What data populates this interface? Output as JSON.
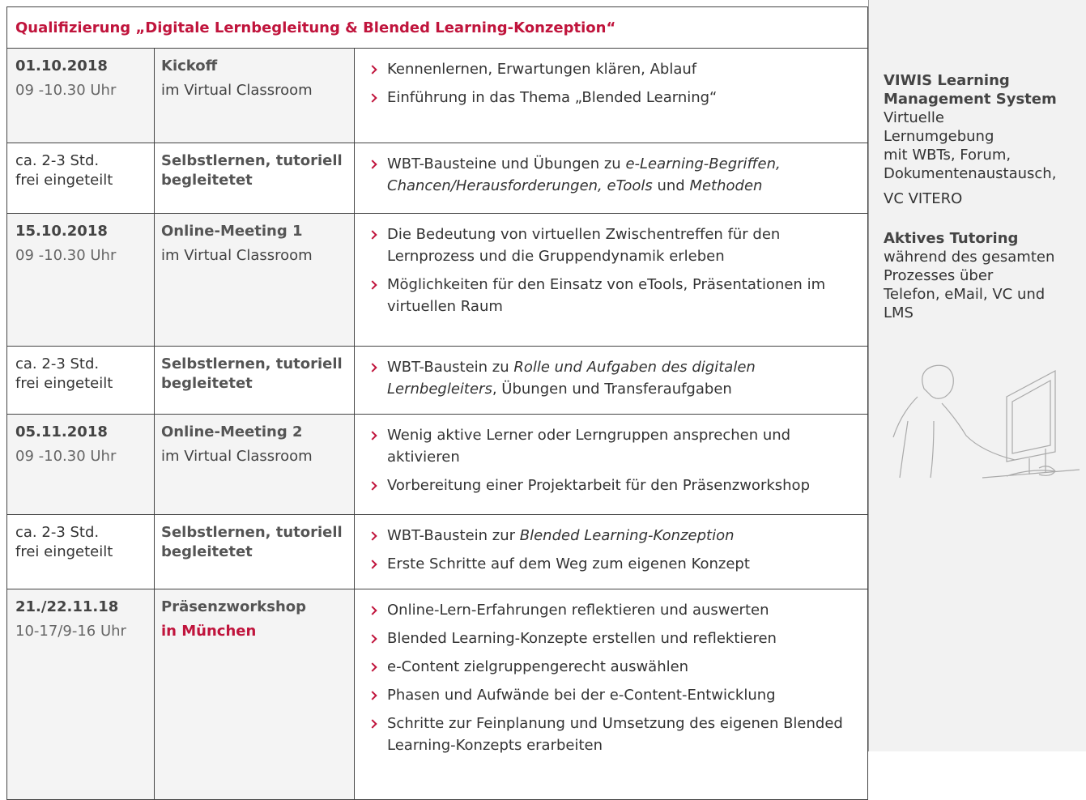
{
  "header": {
    "title": "Qualifizierung „Digitale Lernbegleitung & Blended Learning-Konzeption“"
  },
  "table": {
    "rows": [
      {
        "date": "01.10.2018",
        "time": "09 -10.30 Uhr",
        "title": "Kickoff",
        "subtitle": "im Virtual Classroom",
        "shaded": true,
        "bullets": [
          [
            "Kennenlernen, Erwartungen klären, Ablauf"
          ],
          [
            "Einführung in das Thema „Blended Learning“"
          ]
        ]
      },
      {
        "date": "ca. 2-3 Std.",
        "time": "frei eingeteilt",
        "title": "Selbstlernen, tutoriell begleitetet",
        "shaded": false,
        "bullets": [
          [
            "WBT-Bausteine und Übungen zu ",
            {
              "em": "e-Learning-Begriffen, Chancen/Herausforderungen, eTools"
            },
            " und ",
            {
              "em": "Methoden"
            }
          ]
        ]
      },
      {
        "date": "15.10.2018",
        "time": "09 -10.30 Uhr",
        "title": "Online-Meeting 1",
        "subtitle": "im Virtual Classroom",
        "shaded": true,
        "bullets": [
          [
            "Die Bedeutung von virtuellen Zwischentreffen für den Lernprozess und die Gruppendynamik erleben"
          ],
          [
            "Möglichkeiten für den Einsatz von eTools, Präsentationen im virtuellen Raum"
          ]
        ]
      },
      {
        "date": "ca. 2-3 Std.",
        "time": "frei eingeteilt",
        "title": "Selbstlernen, tutoriell begleitetet",
        "shaded": false,
        "bullets": [
          [
            "WBT-Baustein zu ",
            {
              "em": "Rolle und Aufgaben des digitalen Lernbegleiters"
            },
            ", Übungen und Transferaufgaben"
          ]
        ]
      },
      {
        "date": "05.11.2018",
        "time": "09 -10.30 Uhr",
        "title": "Online-Meeting 2",
        "subtitle": "im Virtual Classroom",
        "shaded": true,
        "bullets": [
          [
            "Wenig aktive Lerner oder Lerngruppen ansprechen und aktivieren"
          ],
          [
            "Vorbereitung einer Projektarbeit für den Präsenzworkshop"
          ]
        ]
      },
      {
        "date": "ca. 2-3 Std.",
        "time": "frei eingeteilt",
        "title": "Selbstlernen, tutoriell begleitetet",
        "shaded": false,
        "bullets": [
          [
            "WBT-Baustein zur ",
            {
              "em": "Blended Learning-Konzeption"
            }
          ],
          [
            "Erste Schritte auf dem Weg zum eigenen Konzept"
          ]
        ]
      },
      {
        "date": "21./22.11.18",
        "time": "10-17/9-16 Uhr",
        "title": "Präsenzworkshop",
        "subtitle": "in München",
        "subtitle_highlight": true,
        "shaded": true,
        "bullets": [
          [
            "Online-Lern-Erfahrungen reflektieren und auswerten"
          ],
          [
            "Blended Learning-Konzepte erstellen und reflektieren"
          ],
          [
            "e-Content zielgruppengerecht auswählen"
          ],
          [
            "Phasen und Aufwände bei der e-Content-Entwicklung"
          ],
          [
            "Schritte zur Feinplanung und Umsetzung des eigenen Blended Learning-Konzepts erarbeiten"
          ]
        ]
      }
    ]
  },
  "sidebar": {
    "blocks": [
      {
        "heading": [
          "VIWIS Learning",
          "Management System"
        ],
        "lines": [
          "Virtuelle",
          "Lernumgebung",
          "mit WBTs, Forum,",
          "Dokumentenaustausch,"
        ]
      },
      {
        "lines": [
          "VC VITERO"
        ]
      },
      {
        "heading": [
          "Aktives Tutoring"
        ],
        "lines": [
          "während des gesamten",
          "Prozesses über",
          "Telefon, eMail, VC und",
          "LMS"
        ]
      }
    ]
  }
}
